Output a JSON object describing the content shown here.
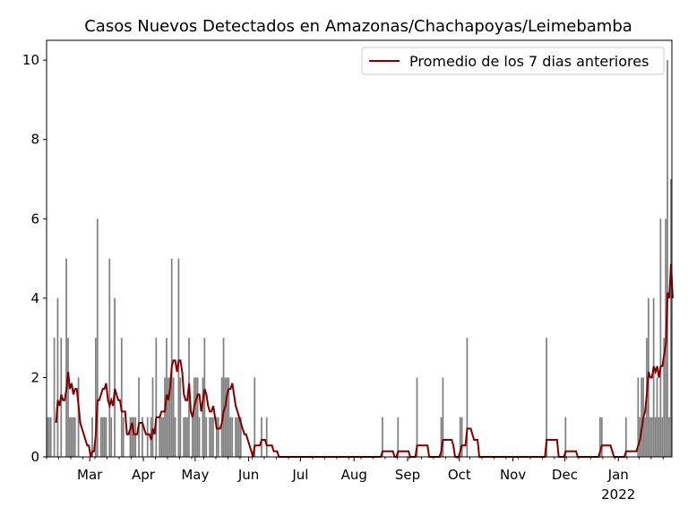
{
  "chart_data": {
    "type": "bar",
    "title": "Casos Nuevos Detectados en Amazonas/Chachapoyas/Leimebamba",
    "xlabel": "",
    "ylabel": "",
    "start_date": "2021-02-04",
    "end_date": "2022-02-01",
    "ylim": [
      0,
      10.5
    ],
    "yticks": [
      0,
      2,
      4,
      6,
      8,
      10
    ],
    "xticks": [
      {
        "date": "2021-03-01",
        "label": "Mar"
      },
      {
        "date": "2021-04-01",
        "label": "Apr"
      },
      {
        "date": "2021-05-01",
        "label": "May"
      },
      {
        "date": "2021-06-01",
        "label": "Jun"
      },
      {
        "date": "2021-07-01",
        "label": "Jul"
      },
      {
        "date": "2021-08-01",
        "label": "Aug"
      },
      {
        "date": "2021-09-01",
        "label": "Sep"
      },
      {
        "date": "2021-10-01",
        "label": "Oct"
      },
      {
        "date": "2021-11-01",
        "label": "Nov"
      },
      {
        "date": "2021-12-01",
        "label": "Dec"
      },
      {
        "date": "2022-01-01",
        "label": "Jan",
        "sublabel": "2022"
      }
    ],
    "legend": {
      "location": "top-right",
      "entries": [
        "Promedio de los 7 dias anteriores"
      ]
    },
    "colors": {
      "bars": "#808080",
      "line": "#800000"
    },
    "series": [
      {
        "name": "Casos diarios (day offset from start_date, cases)",
        "values": [
          [
            0,
            1
          ],
          [
            1,
            1
          ],
          [
            2,
            1
          ],
          [
            4,
            3
          ],
          [
            6,
            4
          ],
          [
            8,
            3
          ],
          [
            11,
            5
          ],
          [
            12,
            3
          ],
          [
            13,
            1
          ],
          [
            14,
            1
          ],
          [
            15,
            1
          ],
          [
            16,
            1
          ],
          [
            18,
            2
          ],
          [
            26,
            1
          ],
          [
            28,
            3
          ],
          [
            29,
            6
          ],
          [
            31,
            1
          ],
          [
            32,
            1
          ],
          [
            33,
            1
          ],
          [
            34,
            1
          ],
          [
            36,
            5
          ],
          [
            37,
            1
          ],
          [
            39,
            4
          ],
          [
            43,
            3
          ],
          [
            44,
            1
          ],
          [
            48,
            1
          ],
          [
            49,
            1
          ],
          [
            50,
            1
          ],
          [
            51,
            1
          ],
          [
            53,
            2
          ],
          [
            55,
            1
          ],
          [
            58,
            1
          ],
          [
            60,
            1
          ],
          [
            61,
            2
          ],
          [
            63,
            3
          ],
          [
            65,
            1
          ],
          [
            66,
            1
          ],
          [
            67,
            1
          ],
          [
            68,
            2
          ],
          [
            69,
            3
          ],
          [
            70,
            2
          ],
          [
            71,
            2
          ],
          [
            72,
            5
          ],
          [
            73,
            2
          ],
          [
            74,
            1
          ],
          [
            76,
            5
          ],
          [
            77,
            2
          ],
          [
            79,
            1
          ],
          [
            80,
            1
          ],
          [
            81,
            1
          ],
          [
            82,
            3
          ],
          [
            84,
            1
          ],
          [
            85,
            2
          ],
          [
            86,
            2
          ],
          [
            87,
            2
          ],
          [
            88,
            1
          ],
          [
            90,
            2
          ],
          [
            91,
            3
          ],
          [
            92,
            1
          ],
          [
            94,
            1
          ],
          [
            95,
            1
          ],
          [
            96,
            1
          ],
          [
            98,
            1
          ],
          [
            99,
            1
          ],
          [
            101,
            2
          ],
          [
            102,
            3
          ],
          [
            103,
            2
          ],
          [
            104,
            2
          ],
          [
            105,
            2
          ],
          [
            106,
            1
          ],
          [
            107,
            1
          ],
          [
            109,
            1
          ],
          [
            110,
            1
          ],
          [
            111,
            1
          ],
          [
            112,
            1
          ],
          [
            120,
            2
          ],
          [
            124,
            1
          ],
          [
            127,
            1
          ],
          [
            194,
            1
          ],
          [
            203,
            1
          ],
          [
            214,
            2
          ],
          [
            228,
            1
          ],
          [
            229,
            2
          ],
          [
            239,
            1
          ],
          [
            240,
            1
          ],
          [
            243,
            3
          ],
          [
            289,
            3
          ],
          [
            300,
            1
          ],
          [
            320,
            1
          ],
          [
            321,
            1
          ],
          [
            335,
            1
          ],
          [
            342,
            2
          ],
          [
            343,
            1
          ],
          [
            344,
            2
          ],
          [
            345,
            2
          ],
          [
            346,
            1
          ],
          [
            347,
            3
          ],
          [
            348,
            4
          ],
          [
            349,
            1
          ],
          [
            350,
            1
          ],
          [
            351,
            4
          ],
          [
            352,
            1
          ],
          [
            353,
            2
          ],
          [
            354,
            1
          ],
          [
            355,
            6
          ],
          [
            356,
            1
          ],
          [
            357,
            3
          ],
          [
            358,
            6
          ],
          [
            359,
            10
          ],
          [
            360,
            1
          ],
          [
            361,
            7
          ]
        ]
      },
      {
        "name": "Promedio de los 7 dias anteriores",
        "computed": "trailing 7-day mean of daily cases"
      }
    ]
  }
}
